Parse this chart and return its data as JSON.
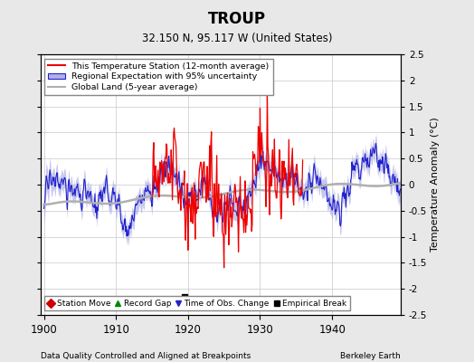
{
  "title": "TROUP",
  "subtitle": "32.150 N, 95.117 W (United States)",
  "xlabel_left": "Data Quality Controlled and Aligned at Breakpoints",
  "xlabel_right": "Berkeley Earth",
  "ylabel": "Temperature Anomaly (°C)",
  "xlim": [
    1899.5,
    1949.5
  ],
  "ylim": [
    -2.5,
    2.5
  ],
  "xticks": [
    1900,
    1910,
    1920,
    1930,
    1940
  ],
  "yticks": [
    -2.5,
    -2,
    -1.5,
    -1,
    -0.5,
    0,
    0.5,
    1,
    1.5,
    2,
    2.5
  ],
  "background_color": "#e8e8e8",
  "plot_bg_color": "#ffffff",
  "grid_color": "#c8c8c8",
  "regional_fill_color": "#b0b0e8",
  "regional_line_color": "#2222cc",
  "station_line_color": "#ee0000",
  "global_land_color": "#b0b0b0",
  "empirical_break_x": 1919.5,
  "empirical_break_y": -2.15,
  "seed": 17
}
